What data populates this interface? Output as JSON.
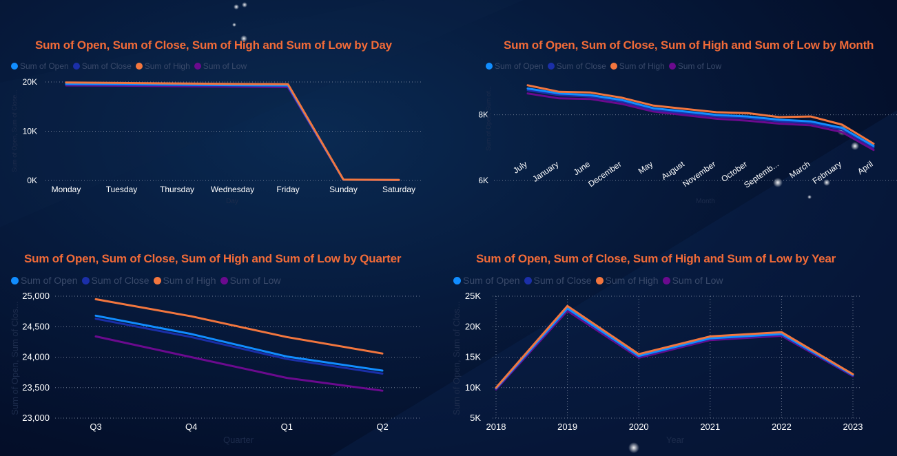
{
  "colors": {
    "open": "#118dff",
    "close": "#1b2fa8",
    "high": "#f2763e",
    "low": "#6b0a8e",
    "title": "#f26b38",
    "tick": "#ffffff",
    "axis_title": "#1d2c4c",
    "grid": "#7f8aa0"
  },
  "chart_data": [
    {
      "type": "line",
      "title": "Sum of Open, Sum of Close, Sum of High and Sum of Low by Day",
      "xlabel": "Day",
      "ylabel": "Sum of Open, Sum of Close...",
      "legend": [
        "Sum of Open",
        "Sum of Close",
        "Sum of High",
        "Sum of Low"
      ],
      "legend_position": "top-left",
      "categories": [
        "Monday",
        "Tuesday",
        "Thursday",
        "Wednesday",
        "Friday",
        "Sunday",
        "Saturday"
      ],
      "y_ticks": [
        "0K",
        "10K",
        "20K"
      ],
      "y_tick_values": [
        0,
        10000,
        20000
      ],
      "ylim": [
        0,
        20000
      ],
      "grid": "horizontal",
      "series": [
        {
          "name": "Sum of Open",
          "values": [
            19600,
            19550,
            19450,
            19350,
            19300,
            150,
            100
          ]
        },
        {
          "name": "Sum of Close",
          "values": [
            19500,
            19450,
            19350,
            19250,
            19200,
            150,
            100
          ]
        },
        {
          "name": "Sum of High",
          "values": [
            19900,
            19800,
            19700,
            19600,
            19550,
            170,
            110
          ]
        },
        {
          "name": "Sum of Low",
          "values": [
            19300,
            19250,
            19150,
            19050,
            18950,
            140,
            90
          ]
        }
      ]
    },
    {
      "type": "line",
      "title": "Sum of Open, Sum of Close, Sum of High and Sum of Low by Month",
      "xlabel": "Month",
      "ylabel": "Sum of Open, Sum of...",
      "legend": [
        "Sum of Open",
        "Sum of Close",
        "Sum of High",
        "Sum of Low"
      ],
      "legend_position": "top-left",
      "categories": [
        "July",
        "January",
        "June",
        "December",
        "May",
        "August",
        "November",
        "October",
        "Septemb...",
        "March",
        "February",
        "April"
      ],
      "y_ticks": [
        "6K",
        "8K"
      ],
      "y_tick_values": [
        6000,
        8000
      ],
      "ylim": [
        6000,
        9000
      ],
      "grid": "horizontal",
      "series": [
        {
          "name": "Sum of Open",
          "values": [
            8800,
            8650,
            8600,
            8450,
            8200,
            8100,
            8000,
            7950,
            7850,
            7800,
            7600,
            7050
          ]
        },
        {
          "name": "Sum of Close",
          "values": [
            8750,
            8600,
            8550,
            8400,
            8150,
            8050,
            7950,
            7900,
            7800,
            7750,
            7550,
            7000
          ]
        },
        {
          "name": "Sum of High",
          "values": [
            8900,
            8700,
            8680,
            8520,
            8280,
            8180,
            8080,
            8050,
            7930,
            7950,
            7700,
            7120
          ]
        },
        {
          "name": "Sum of Low",
          "values": [
            8650,
            8500,
            8480,
            8330,
            8100,
            7990,
            7880,
            7820,
            7730,
            7680,
            7470,
            6930
          ]
        }
      ]
    },
    {
      "type": "line",
      "title": "Sum of Open, Sum of Close, Sum of High and Sum of Low by Quarter",
      "xlabel": "Quarter",
      "ylabel": "Sum of Open, Sum of Clos...",
      "legend": [
        "Sum of Open",
        "Sum of Close",
        "Sum of High",
        "Sum of Low"
      ],
      "legend_position": "top-left",
      "categories": [
        "Q3",
        "Q4",
        "Q1",
        "Q2"
      ],
      "y_ticks": [
        "23,000",
        "23,500",
        "24,000",
        "24,500",
        "25,000"
      ],
      "y_tick_values": [
        23000,
        23500,
        24000,
        24500,
        25000
      ],
      "ylim": [
        23000,
        25000
      ],
      "grid": "horizontal",
      "series": [
        {
          "name": "Sum of Open",
          "values": [
            24680,
            24380,
            24010,
            23780
          ]
        },
        {
          "name": "Sum of Close",
          "values": [
            24630,
            24330,
            23970,
            23730
          ]
        },
        {
          "name": "Sum of High",
          "values": [
            24950,
            24670,
            24330,
            24060
          ]
        },
        {
          "name": "Sum of Low",
          "values": [
            24340,
            24000,
            23660,
            23450
          ]
        }
      ]
    },
    {
      "type": "line",
      "title": "Sum of Open, Sum of Close, Sum of High and Sum of Low by Year",
      "xlabel": "Year",
      "ylabel": "Sum of Open, Sum of Clos...",
      "legend": [
        "Sum of Open",
        "Sum of Close",
        "Sum of High",
        "Sum of Low"
      ],
      "legend_position": "top-left",
      "categories": [
        "2018",
        "2019",
        "2020",
        "2021",
        "2022",
        "2023"
      ],
      "y_ticks": [
        "5K",
        "10K",
        "15K",
        "20K",
        "25K"
      ],
      "y_tick_values": [
        5000,
        10000,
        15000,
        20000,
        25000
      ],
      "ylim": [
        5000,
        25000
      ],
      "grid": "both",
      "series": [
        {
          "name": "Sum of Open",
          "values": [
            9900,
            23000,
            15200,
            18100,
            18800,
            12100
          ]
        },
        {
          "name": "Sum of Close",
          "values": [
            9850,
            22900,
            15100,
            18000,
            18700,
            12000
          ]
        },
        {
          "name": "Sum of High",
          "values": [
            10000,
            23400,
            15500,
            18400,
            19100,
            12200
          ]
        },
        {
          "name": "Sum of Low",
          "values": [
            9700,
            22600,
            14900,
            17800,
            18500,
            11900
          ]
        }
      ]
    }
  ]
}
